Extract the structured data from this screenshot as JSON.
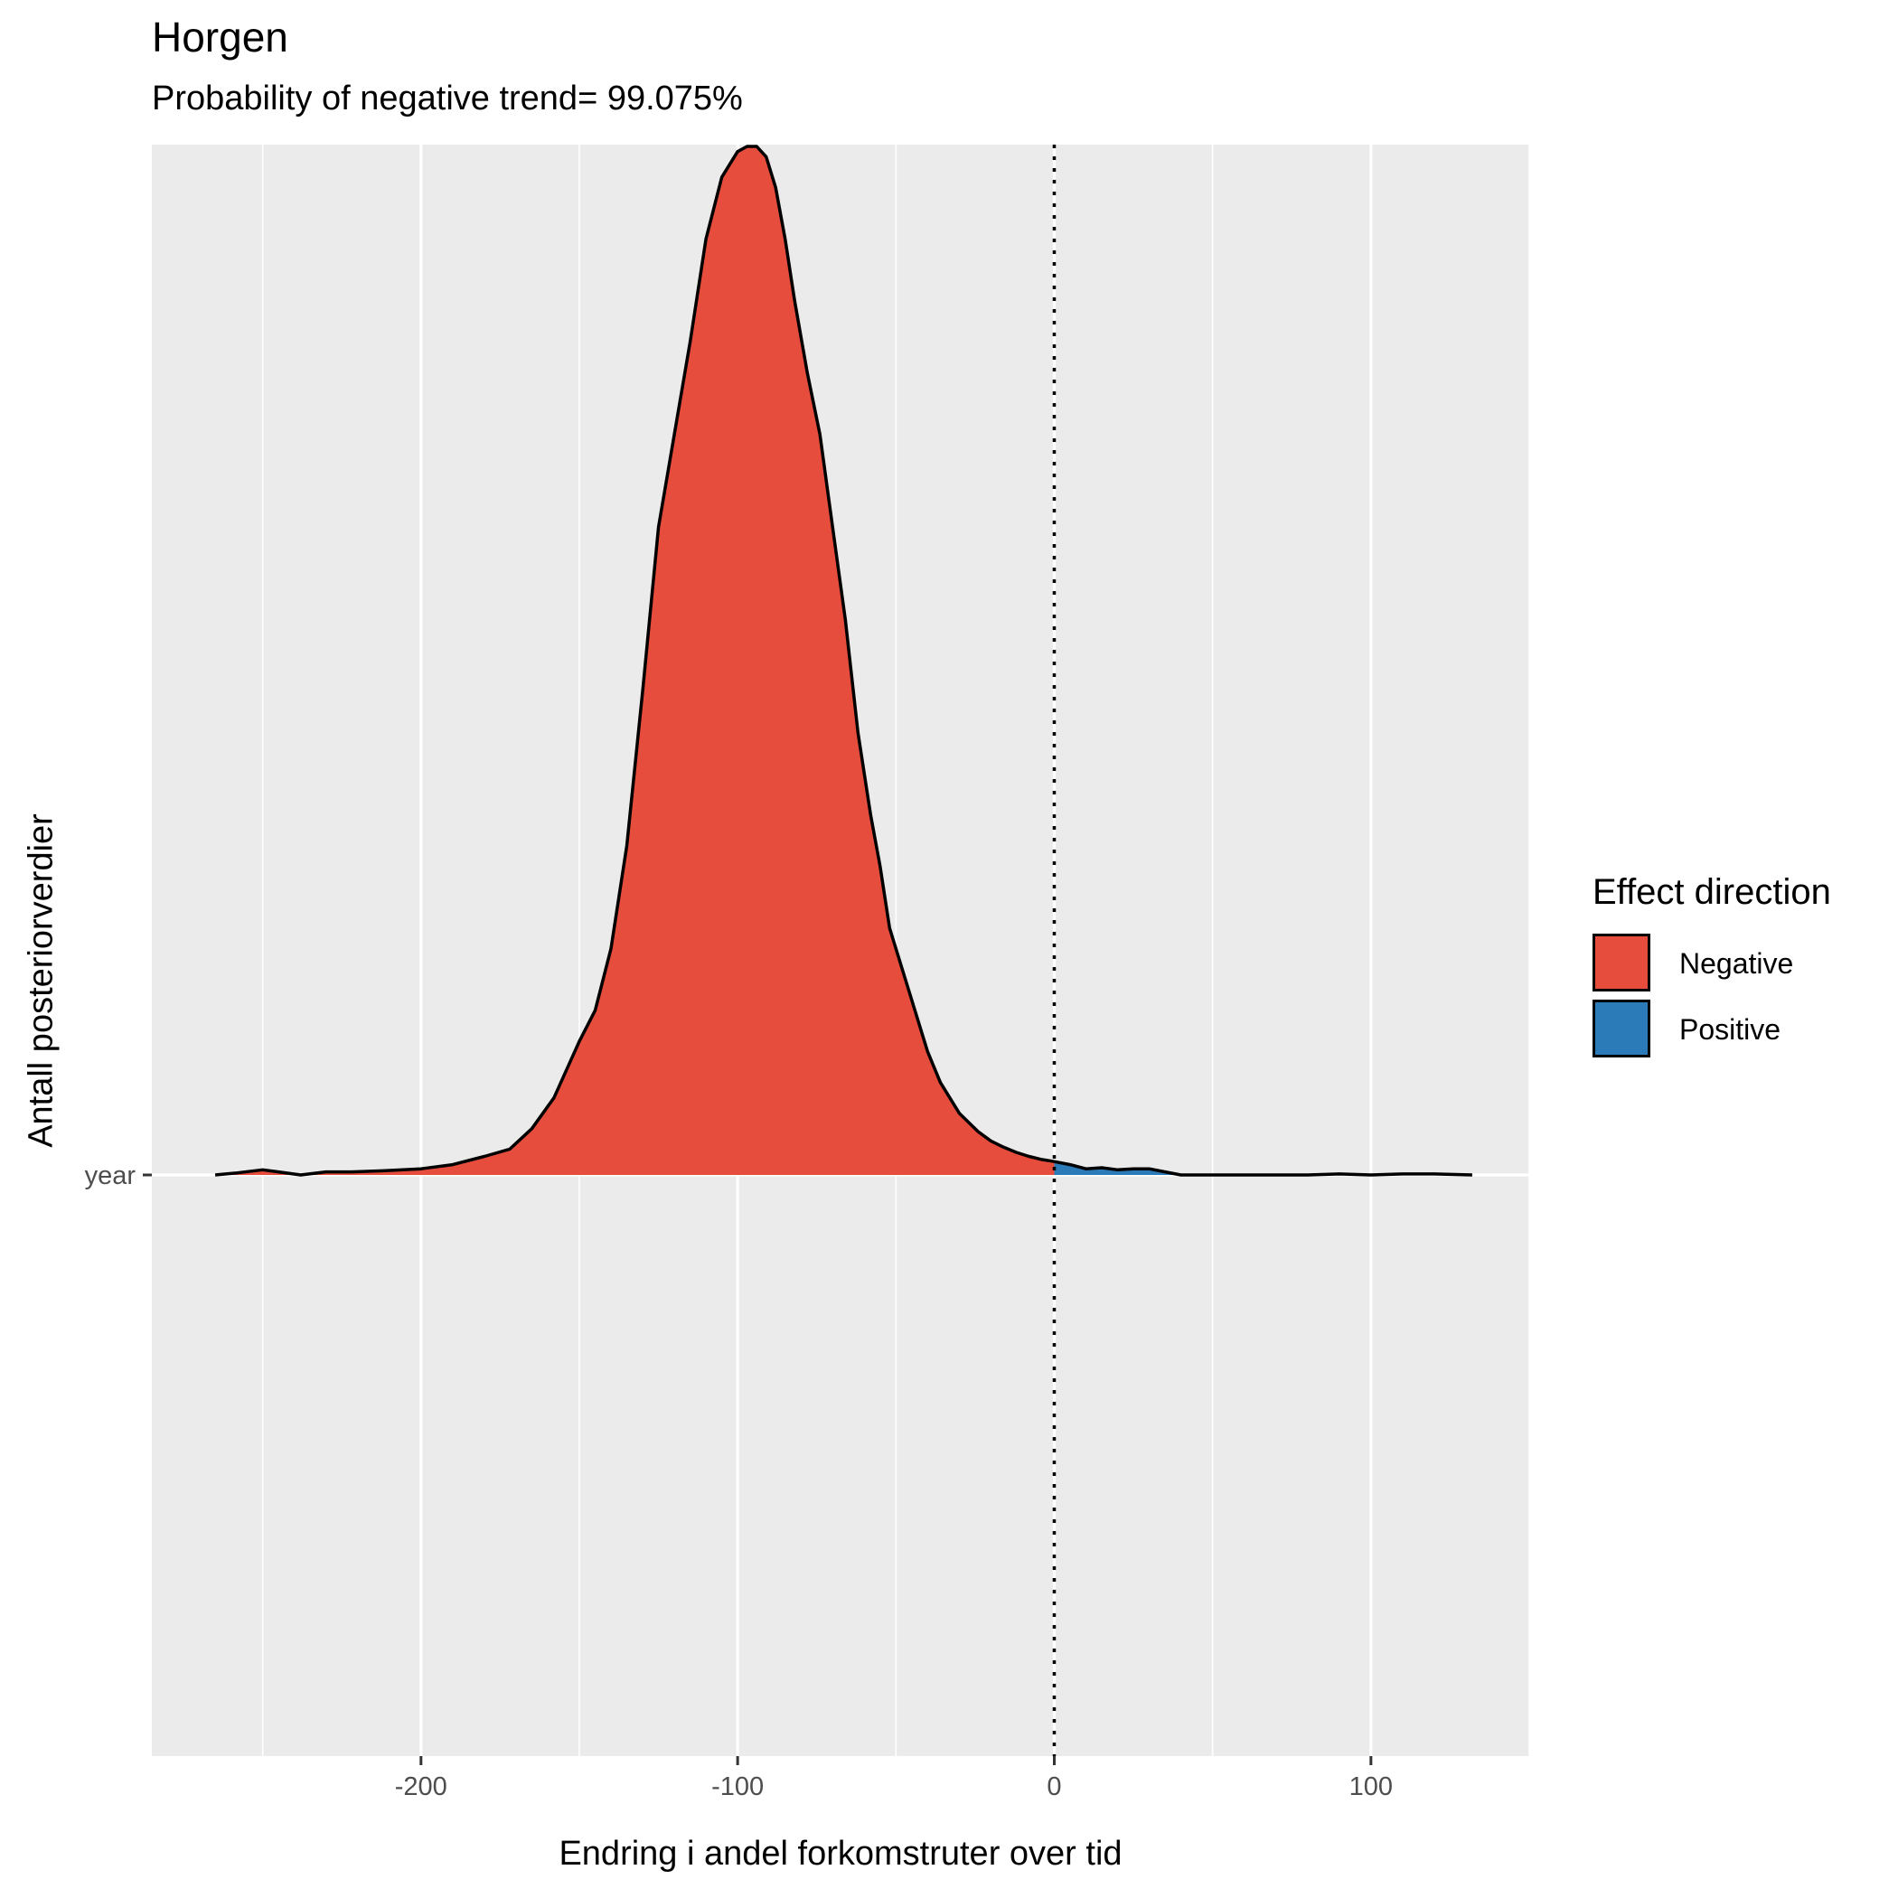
{
  "chart_data": {
    "type": "area",
    "title": "Horgen",
    "subtitle": "Probability of negative trend= 99.075%",
    "xlabel": "Endring i andel forkomstruter over tid",
    "ylabel": "Antall posteriorverdier",
    "y_category": "year",
    "xlim": [
      -285,
      150
    ],
    "x_ticks": [
      -200,
      -100,
      0,
      100
    ],
    "x_tick_labels": [
      "-200",
      "-100",
      "0",
      "100"
    ],
    "x_minor_gridlines": [
      -250,
      -150,
      -50,
      50,
      150
    ],
    "reference_line_x": 0,
    "grid": true,
    "legend": {
      "title": "Effect direction",
      "position": "right",
      "entries": [
        {
          "label": "Negative",
          "color": "#E64D3D"
        },
        {
          "label": "Positive",
          "color": "#2B7BB9"
        }
      ]
    },
    "density": {
      "x": [
        -265,
        -258,
        -250,
        -245,
        -238,
        -230,
        -222,
        -212,
        -200,
        -190,
        -180,
        -172,
        -165,
        -158,
        -150,
        -145,
        -140,
        -135,
        -130,
        -125,
        -120,
        -115,
        -110,
        -105,
        -100,
        -97,
        -94,
        -91,
        -88,
        -85,
        -82,
        -78,
        -74,
        -70,
        -66,
        -62,
        -58,
        -55,
        -52,
        -48,
        -44,
        -40,
        -36,
        -30,
        -24,
        -20,
        -16,
        -12,
        -8,
        -4,
        0,
        5,
        10,
        15,
        20,
        25,
        30,
        35,
        40,
        45,
        50,
        60,
        70,
        80,
        90,
        100,
        110,
        120,
        132
      ],
      "y": [
        0.0,
        0.002,
        0.005,
        0.003,
        0.0,
        0.003,
        0.003,
        0.004,
        0.006,
        0.01,
        0.018,
        0.025,
        0.045,
        0.075,
        0.13,
        0.16,
        0.22,
        0.32,
        0.47,
        0.63,
        0.72,
        0.81,
        0.91,
        0.97,
        0.995,
        1.0,
        1.0,
        0.99,
        0.96,
        0.91,
        0.85,
        0.78,
        0.72,
        0.63,
        0.54,
        0.43,
        0.35,
        0.3,
        0.24,
        0.2,
        0.16,
        0.12,
        0.09,
        0.06,
        0.042,
        0.033,
        0.027,
        0.022,
        0.018,
        0.015,
        0.013,
        0.01,
        0.006,
        0.007,
        0.005,
        0.006,
        0.006,
        0.003,
        0.0,
        0.0,
        0.0,
        0.0,
        0.0,
        0.0,
        0.001,
        0.0,
        0.001,
        0.001,
        0.0
      ]
    }
  }
}
